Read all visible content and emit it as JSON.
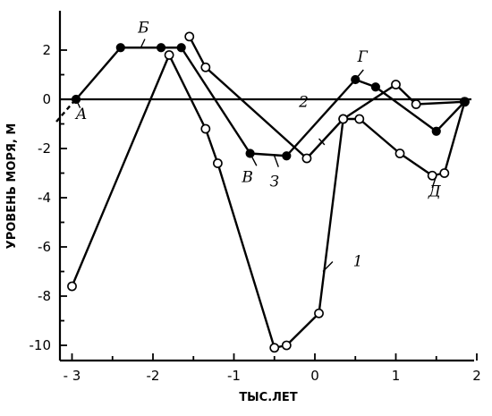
{
  "chart_data": {
    "type": "line",
    "xlabel": "ТЫС.ЛЕТ",
    "ylabel": "УРОВЕНЬ МОРЯ, М",
    "xlim": [
      -3.2,
      2.1
    ],
    "ylim": [
      -10.8,
      3.5
    ],
    "xticks": [
      -3,
      -2,
      -1,
      0,
      1,
      2
    ],
    "xtick_labels": [
      "- 3",
      "-2",
      "-1",
      "0",
      "1",
      "2"
    ],
    "yticks": [
      2,
      0,
      -2,
      -4,
      -6,
      -8,
      -10
    ],
    "ytick_labels": [
      "2",
      "0",
      "-2",
      "-4",
      "-6",
      "-8",
      "-10"
    ],
    "zero_line": true,
    "series": [
      {
        "name": "1",
        "marker": "open",
        "x": [
          -3.0,
          -1.8,
          -1.35,
          -1.2,
          -0.5,
          -0.35,
          0.05,
          0.35,
          0.55,
          1.05,
          1.45,
          1.6,
          1.85
        ],
        "y": [
          -7.6,
          1.8,
          -1.2,
          -2.6,
          -10.1,
          -10.0,
          -8.7,
          -0.8,
          -0.8,
          -2.2,
          -3.1,
          -3.0,
          -0.1
        ]
      },
      {
        "name": "2",
        "marker": "open",
        "x": [
          -1.55,
          -1.35,
          -0.1,
          0.35,
          1.0,
          1.25,
          1.85
        ],
        "y": [
          2.55,
          1.3,
          -2.4,
          -0.8,
          0.6,
          -0.2,
          -0.1
        ]
      },
      {
        "name": "filled",
        "marker": "filled",
        "x": [
          -2.95,
          -2.4,
          -1.9,
          -1.65,
          -0.8,
          -0.35,
          0.5,
          0.75,
          1.5,
          1.85
        ],
        "y": [
          0.0,
          2.1,
          2.1,
          2.1,
          -2.2,
          -2.3,
          0.8,
          0.5,
          -1.3,
          -0.1
        ]
      }
    ],
    "annotations": [
      {
        "text": "А",
        "x": -2.95,
        "y": 0.0
      },
      {
        "text": "Б",
        "x": -2.15,
        "y": 2.1
      },
      {
        "text": "В",
        "x": -0.8,
        "y": -2.2
      },
      {
        "text": "З",
        "x": -0.5,
        "y": -2.3
      },
      {
        "text": "Г",
        "x": 0.5,
        "y": 0.8
      },
      {
        "text": "Д",
        "x": 1.5,
        "y": -3.1
      },
      {
        "text": "1",
        "x": 0.2,
        "y": -7.0
      },
      {
        "text": "2",
        "x": 0.05,
        "y": -1.4
      }
    ]
  }
}
